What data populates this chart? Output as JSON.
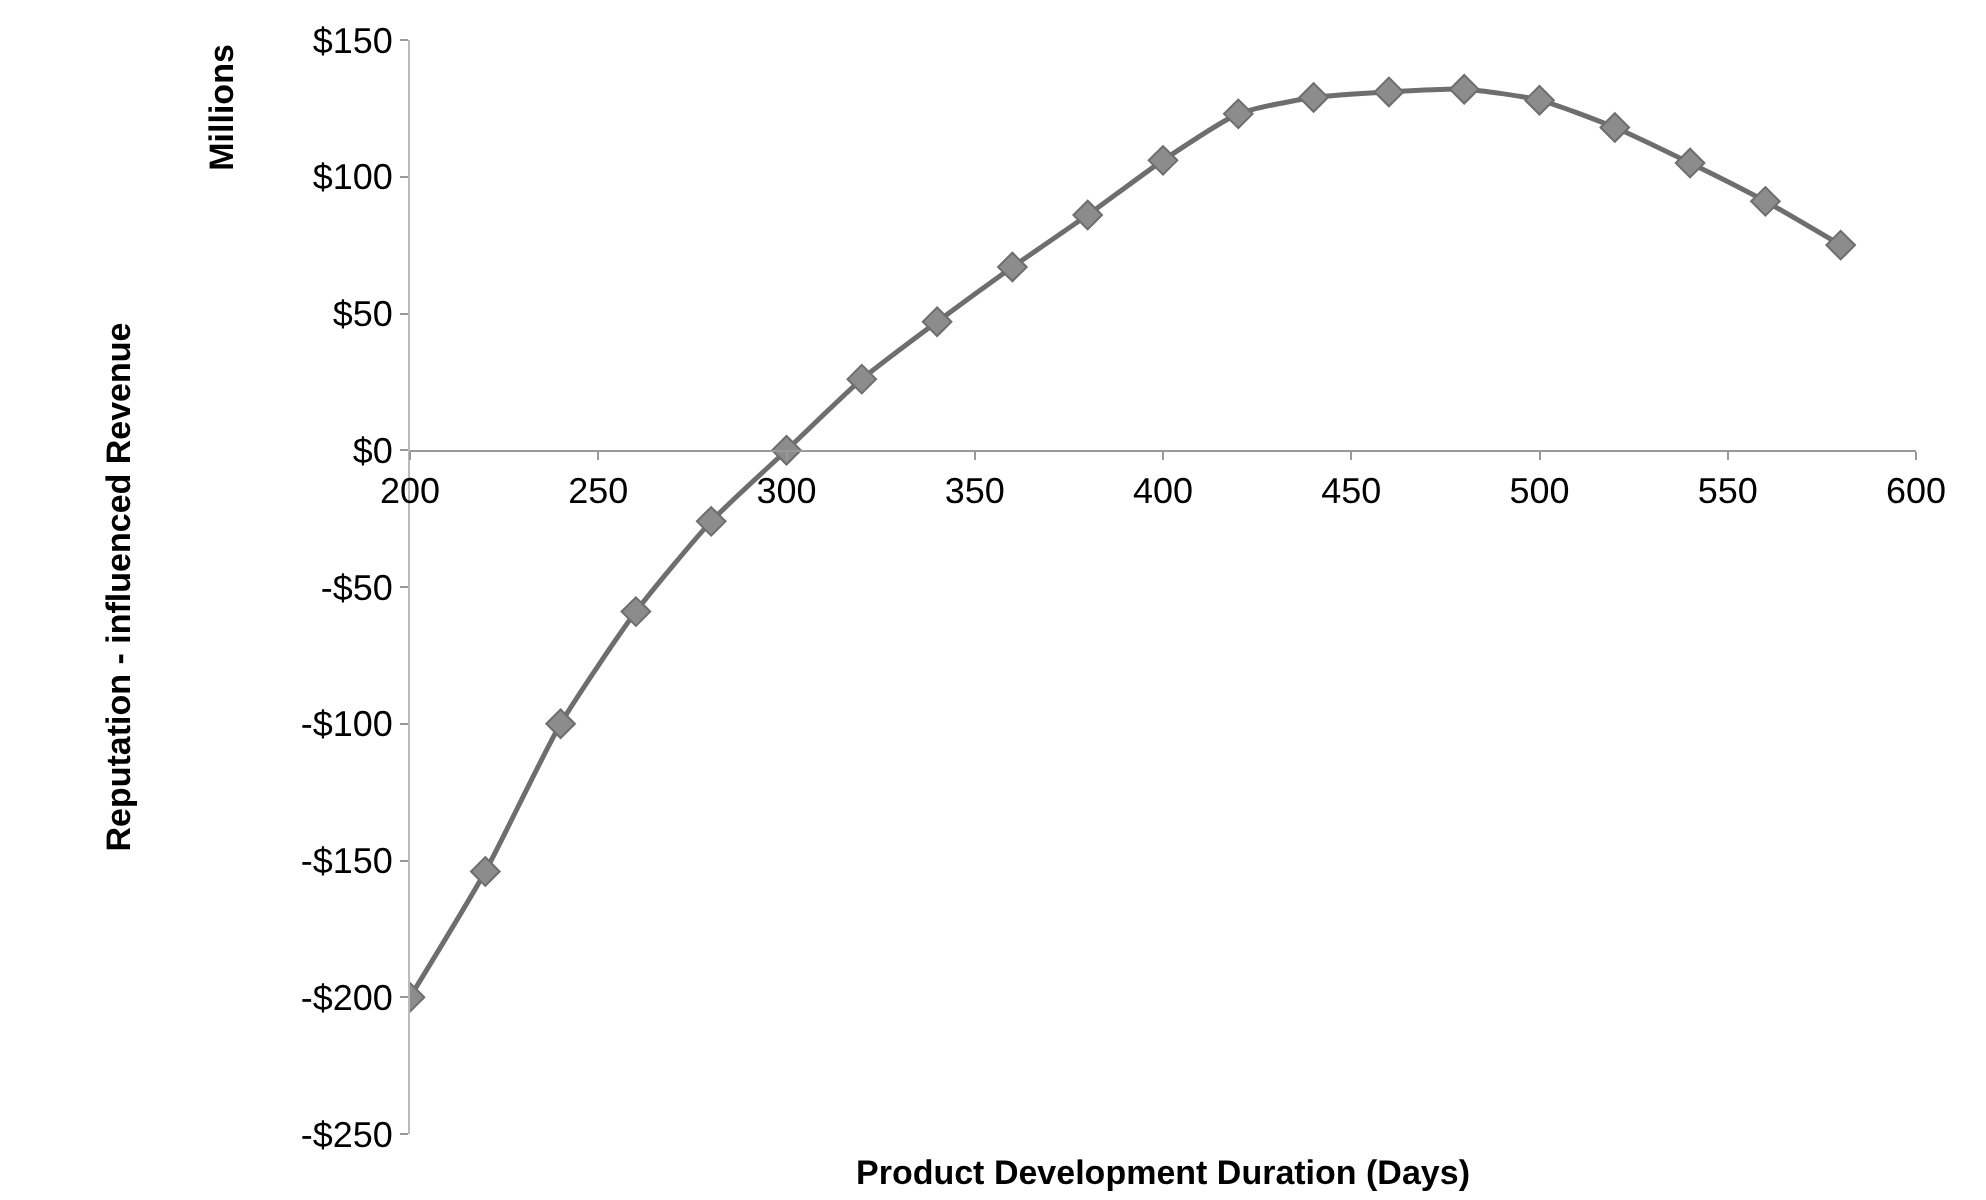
{
  "chart_data": {
    "type": "line",
    "xlabel": "Product Development Duration (Days)",
    "ylabel": "Reputation - influenced Revenue",
    "annotations": [
      "Millions"
    ],
    "x": [
      200,
      220,
      240,
      260,
      280,
      300,
      320,
      340,
      360,
      380,
      400,
      420,
      440,
      460,
      480,
      500,
      520,
      540,
      560,
      580
    ],
    "series": [
      {
        "color": "#6e6e6e",
        "values": [
          -200,
          -154,
          -100,
          -59,
          -26,
          0,
          26,
          47,
          67,
          86,
          106,
          123,
          129,
          131,
          132,
          128,
          118,
          105,
          91,
          75
        ]
      }
    ],
    "xlim": [
      200,
      600
    ],
    "xticks": [
      200,
      250,
      300,
      350,
      400,
      450,
      500,
      550,
      600
    ],
    "ylim": [
      -250,
      150
    ],
    "yticks": [
      {
        "value": -250,
        "label": "-$250"
      },
      {
        "value": -200,
        "label": "-$200"
      },
      {
        "value": -150,
        "label": "-$150"
      },
      {
        "value": -100,
        "label": "-$100"
      },
      {
        "value": -50,
        "label": "-$50"
      },
      {
        "value": 0,
        "label": "$0"
      },
      {
        "value": 50,
        "label": "$50"
      },
      {
        "value": 100,
        "label": "$100"
      },
      {
        "value": 150,
        "label": "$150"
      }
    ],
    "grid": false,
    "legend": false,
    "marker": "diamond",
    "line_style": "solid"
  }
}
